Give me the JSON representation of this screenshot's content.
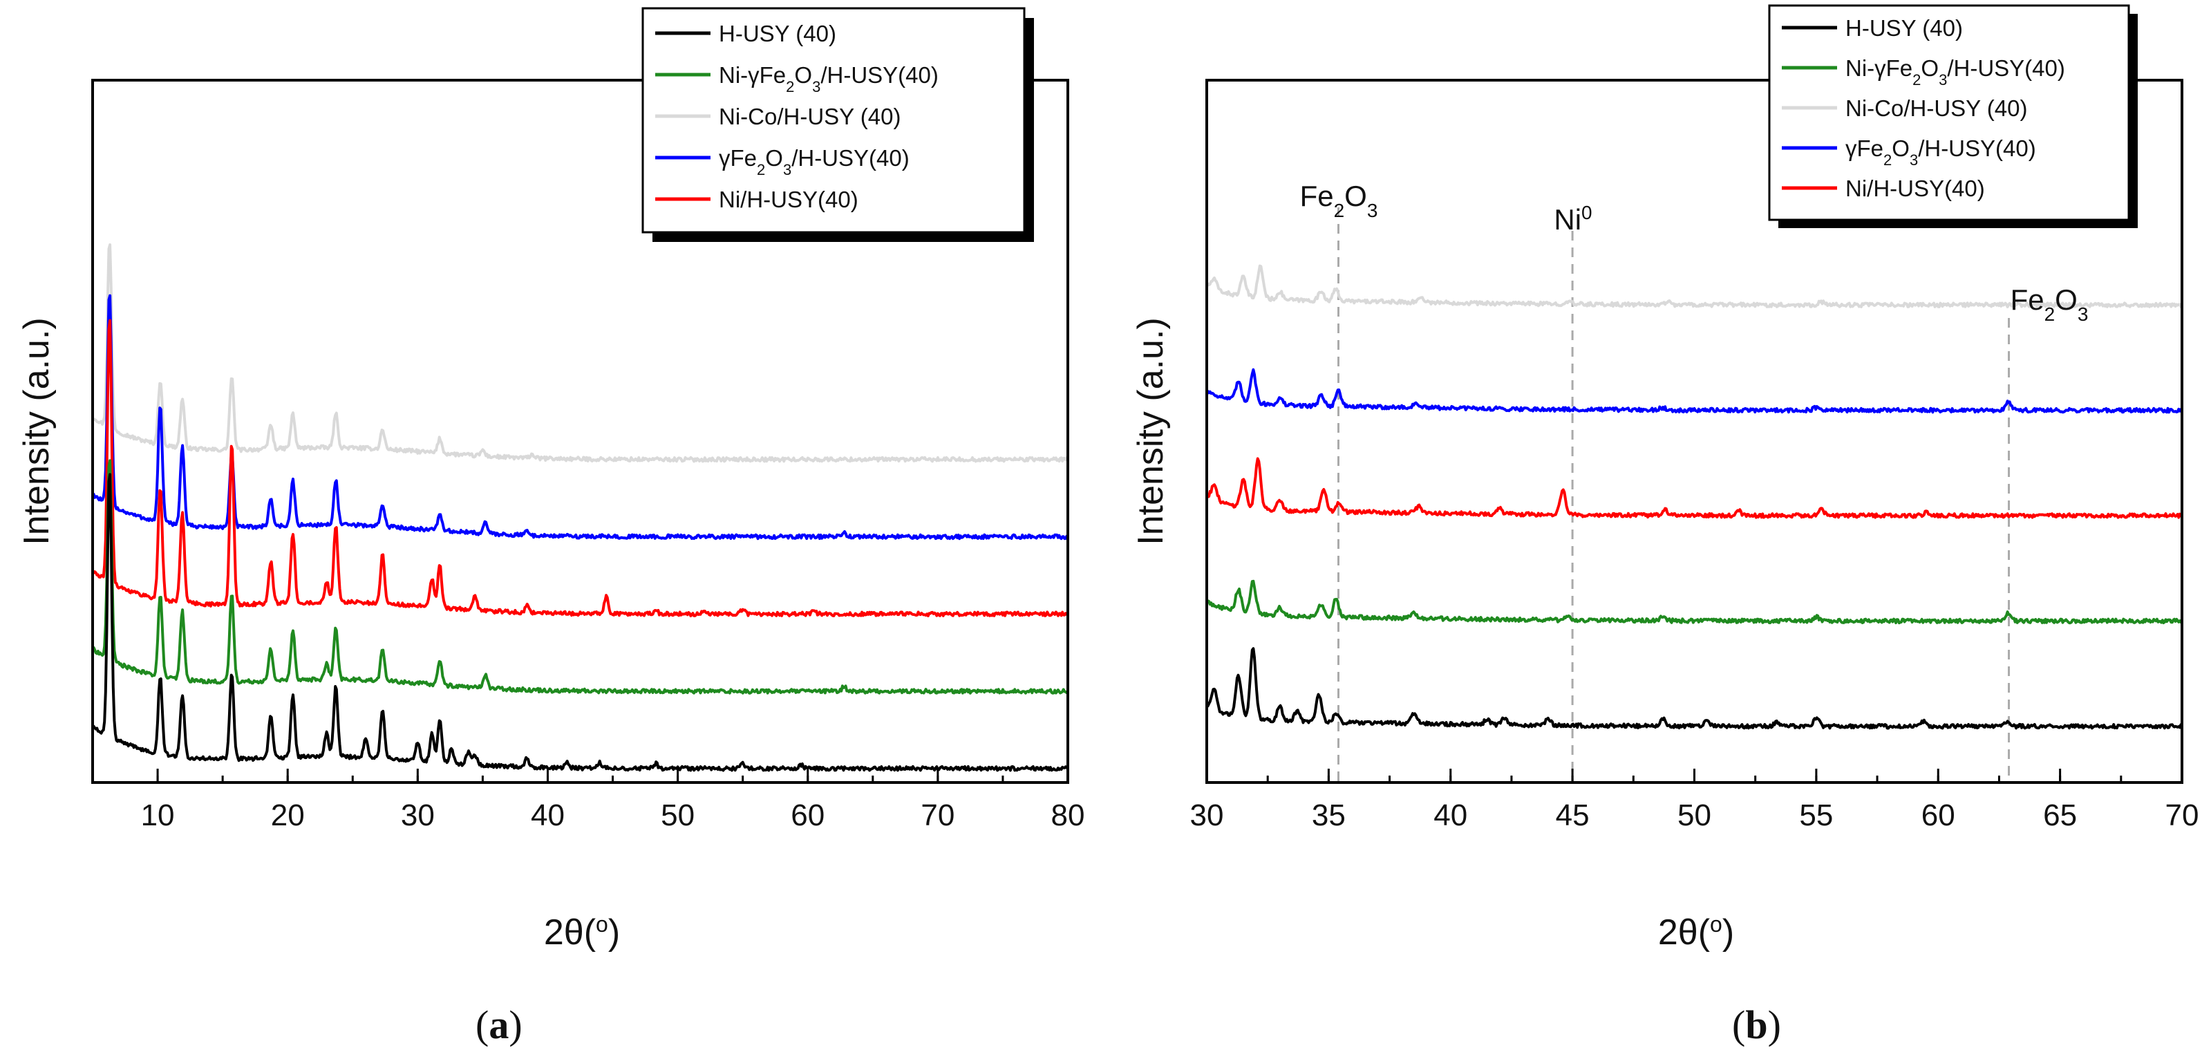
{
  "chart_data": [
    {
      "id": "a",
      "type": "line",
      "caption_open": "(",
      "caption_letter": "a",
      "caption_close": ")",
      "xlabel": "2θ(o)",
      "xlabel_main": "2θ(",
      "xlabel_sup": "o",
      "xlabel_end": ")",
      "ylabel": "Intensity (a.u.)",
      "xlim": [
        5,
        80
      ],
      "ylim": [
        0,
        100
      ],
      "xticks": [
        10,
        20,
        30,
        40,
        50,
        60,
        70,
        80
      ],
      "legend_position": "top-right",
      "legend": [
        "H-USY (40)",
        "Ni-γFe2O3/H-USY(40)",
        "Ni-Co/H-USY (40)",
        "γFe2O3/H-USY(40)",
        "Ni/H-USY(40)"
      ],
      "series": [
        {
          "name": "H-USY (40)",
          "color": "#000000",
          "baseline": 2,
          "amp": 1.0,
          "peaks": [
            [
              6.3,
              38
            ],
            [
              10.2,
              11
            ],
            [
              11.9,
              9
            ],
            [
              15.7,
              12
            ],
            [
              18.7,
              6
            ],
            [
              20.4,
              9
            ],
            [
              23.0,
              3.5
            ],
            [
              23.7,
              10
            ],
            [
              26.0,
              2.5
            ],
            [
              27.3,
              7
            ],
            [
              30.0,
              2.5
            ],
            [
              31.1,
              4
            ],
            [
              31.7,
              6
            ],
            [
              32.6,
              2
            ],
            [
              33.9,
              1.8
            ],
            [
              34.4,
              1.5
            ],
            [
              38.4,
              1.3
            ],
            [
              41.5,
              0.8
            ],
            [
              44.0,
              0.8
            ],
            [
              48.3,
              0.7
            ],
            [
              55.0,
              0.8
            ],
            [
              59.5,
              0.5
            ]
          ]
        },
        {
          "name": "Ni-γFe2O3/H-USY(40)",
          "color": "#1f8a1f",
          "baseline": 13,
          "amp": 0.9,
          "peaks": [
            [
              6.3,
              32
            ],
            [
              10.2,
              13
            ],
            [
              11.9,
              11
            ],
            [
              15.7,
              14
            ],
            [
              18.7,
              5
            ],
            [
              20.4,
              8
            ],
            [
              23.0,
              2.5
            ],
            [
              23.7,
              8
            ],
            [
              27.3,
              5
            ],
            [
              31.7,
              4
            ],
            [
              35.2,
              2.2
            ],
            [
              62.8,
              0.8
            ]
          ]
        },
        {
          "name": "Ni/H-USY(40)",
          "color": "#ff0000",
          "baseline": 24,
          "amp": 1.0,
          "peaks": [
            [
              6.3,
              38
            ],
            [
              10.2,
              16
            ],
            [
              11.9,
              13
            ],
            [
              15.7,
              23
            ],
            [
              18.7,
              6
            ],
            [
              20.4,
              10
            ],
            [
              23.0,
              3
            ],
            [
              23.7,
              11
            ],
            [
              27.3,
              7
            ],
            [
              31.1,
              4
            ],
            [
              31.7,
              6
            ],
            [
              34.4,
              2
            ],
            [
              38.4,
              1
            ],
            [
              44.5,
              2.5
            ],
            [
              48.3,
              0.6
            ],
            [
              52.0,
              0.5
            ],
            [
              55.0,
              0.7
            ],
            [
              60.5,
              0.4
            ]
          ]
        },
        {
          "name": "γFe2O3/H-USY(40)",
          "color": "#0000ff",
          "baseline": 35,
          "amp": 0.8,
          "peaks": [
            [
              6.3,
              38
            ],
            [
              10.2,
              21
            ],
            [
              11.9,
              14
            ],
            [
              15.7,
              13
            ],
            [
              18.7,
              5
            ],
            [
              20.4,
              8
            ],
            [
              23.7,
              8
            ],
            [
              27.3,
              4
            ],
            [
              31.7,
              3
            ],
            [
              35.2,
              2
            ],
            [
              38.4,
              0.8
            ],
            [
              62.8,
              0.8
            ]
          ]
        },
        {
          "name": "Ni-Co/H-USY (40)",
          "color": "#d9d9d9",
          "baseline": 46,
          "amp": 0.7,
          "peaks": [
            [
              6.3,
              38
            ],
            [
              10.2,
              13
            ],
            [
              11.9,
              10
            ],
            [
              15.7,
              15
            ],
            [
              18.7,
              5
            ],
            [
              20.4,
              7
            ],
            [
              23.7,
              7
            ],
            [
              27.3,
              4
            ],
            [
              31.7,
              3
            ],
            [
              35.0,
              1.2
            ],
            [
              38.8,
              0.8
            ]
          ]
        }
      ]
    },
    {
      "id": "b",
      "type": "line",
      "caption_open": "(",
      "caption_letter": "b",
      "caption_close": ")",
      "xlabel": "2θ(o)",
      "xlabel_main": "2θ(",
      "xlabel_sup": "o",
      "xlabel_end": ")",
      "ylabel": "Intensity (a.u.)",
      "xlim": [
        30,
        70
      ],
      "ylim": [
        0,
        100
      ],
      "xticks": [
        30,
        35,
        40,
        45,
        50,
        55,
        60,
        65,
        70
      ],
      "legend_position": "top-right",
      "legend": [
        "H-USY (40)",
        "Ni-γFe2O3/H-USY(40)",
        "Ni-Co/H-USY (40)",
        "γFe2O3/H-USY(40)",
        "Ni/H-USY(40)"
      ],
      "annotations": [
        {
          "label": "Fe2O3",
          "main": "Fe",
          "sub1": "2",
          "mid": "O",
          "sub2": "3",
          "x": 35.4
        },
        {
          "label": "Ni0",
          "main": "Ni",
          "sup": "0",
          "x": 45.0
        },
        {
          "label": "Fe2O3",
          "main": "Fe",
          "sub1": "2",
          "mid": "O",
          "sub2": "3",
          "x": 62.9
        }
      ],
      "series": [
        {
          "name": "H-USY (40)",
          "color": "#000000",
          "baseline": 8,
          "amp": 1.0,
          "peaks": [
            [
              30.3,
              3
            ],
            [
              31.3,
              6
            ],
            [
              31.9,
              10
            ],
            [
              33.0,
              2
            ],
            [
              33.7,
              1.5
            ],
            [
              34.6,
              4
            ],
            [
              35.3,
              1.2
            ],
            [
              38.5,
              1.5
            ],
            [
              41.5,
              0.8
            ],
            [
              42.2,
              1
            ],
            [
              44.0,
              0.8
            ],
            [
              48.7,
              1
            ],
            [
              50.5,
              0.7
            ],
            [
              53.4,
              0.6
            ],
            [
              55.0,
              1.2
            ],
            [
              59.4,
              0.7
            ],
            [
              62.8,
              0.5
            ]
          ]
        },
        {
          "name": "Ni-γFe2O3/H-USY(40)",
          "color": "#1f8a1f",
          "baseline": 23,
          "amp": 0.9,
          "peaks": [
            [
              31.3,
              3.5
            ],
            [
              31.9,
              5
            ],
            [
              33.0,
              1.2
            ],
            [
              34.7,
              2
            ],
            [
              35.3,
              2.8
            ],
            [
              38.5,
              0.8
            ],
            [
              44.8,
              0.5
            ],
            [
              48.7,
              0.6
            ],
            [
              55.0,
              0.6
            ],
            [
              62.9,
              1.3
            ]
          ]
        },
        {
          "name": "Ni/H-USY(40)",
          "color": "#ff0000",
          "baseline": 38,
          "amp": 1.0,
          "peaks": [
            [
              30.3,
              2
            ],
            [
              31.5,
              4
            ],
            [
              32.1,
              7
            ],
            [
              33.0,
              1.5
            ],
            [
              34.8,
              3
            ],
            [
              35.4,
              1.2
            ],
            [
              38.7,
              1
            ],
            [
              42.0,
              0.8
            ],
            [
              44.6,
              3.5
            ],
            [
              48.8,
              0.8
            ],
            [
              51.8,
              0.7
            ],
            [
              55.2,
              0.9
            ],
            [
              59.5,
              0.4
            ]
          ]
        },
        {
          "name": "γFe2O3/H-USY(40)",
          "color": "#0000ff",
          "baseline": 53,
          "amp": 0.9,
          "peaks": [
            [
              31.3,
              3
            ],
            [
              31.9,
              5
            ],
            [
              33.0,
              1
            ],
            [
              34.7,
              1.8
            ],
            [
              35.4,
              2.5
            ],
            [
              38.6,
              0.7
            ],
            [
              48.7,
              0.4
            ],
            [
              55.0,
              0.4
            ],
            [
              62.9,
              1.3
            ]
          ]
        },
        {
          "name": "Ni-Co/H-USY (40)",
          "color": "#d9d9d9",
          "baseline": 68,
          "amp": 0.9,
          "peaks": [
            [
              30.3,
              1.5
            ],
            [
              31.5,
              3
            ],
            [
              32.2,
              5
            ],
            [
              33.0,
              1.2
            ],
            [
              34.7,
              1.5
            ],
            [
              35.3,
              1.8
            ],
            [
              38.8,
              0.8
            ],
            [
              44.8,
              0.5
            ],
            [
              48.9,
              0.5
            ],
            [
              55.2,
              0.5
            ]
          ]
        }
      ]
    }
  ]
}
